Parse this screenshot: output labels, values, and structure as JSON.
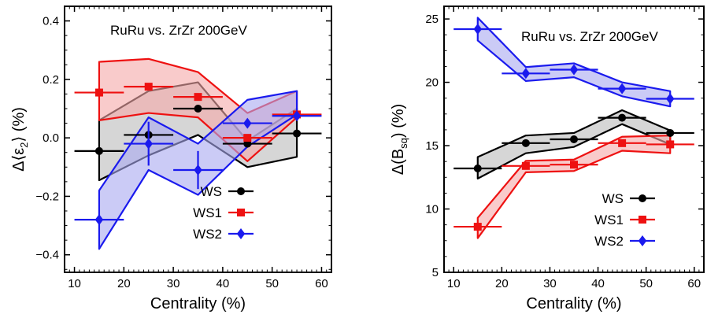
{
  "chart_data": [
    {
      "type": "line",
      "title": "RuRu vs. ZrZr 200GeV",
      "xlabel": "Centrality (%)",
      "ylabel_prefix": "Δ⟨ε",
      "ylabel_sub": "2",
      "ylabel_suffix": "⟩ (%)",
      "xlim": [
        8,
        62
      ],
      "ylim": [
        -0.46,
        0.45
      ],
      "xticks": [
        10,
        20,
        30,
        40,
        50,
        60
      ],
      "yticks": [
        -0.4,
        -0.2,
        0.0,
        0.2,
        0.4
      ],
      "ytick_labels": [
        "−0.4",
        "−0.2",
        "0.0",
        "0.2",
        "0.4"
      ],
      "legend_position": "lower-right",
      "series": [
        {
          "name": "WS",
          "color": "#000000",
          "fill": "#bbbbbb",
          "marker": "circle",
          "x": [
            15,
            25,
            35,
            45,
            55
          ],
          "y": [
            -0.045,
            0.01,
            0.1,
            -0.02,
            0.015
          ],
          "xerr": 5,
          "band_upper": [
            0.06,
            0.16,
            0.19,
            -0.01,
            0.1
          ],
          "band_lower": [
            -0.145,
            -0.06,
            0.01,
            -0.1,
            -0.065
          ]
        },
        {
          "name": "WS1",
          "color": "#ee1111",
          "fill": "#f5a8a8",
          "marker": "square",
          "x": [
            15,
            25,
            35,
            45,
            55
          ],
          "y": [
            0.155,
            0.175,
            0.14,
            0.0,
            0.08
          ],
          "xerr": 5,
          "band_upper": [
            0.26,
            0.27,
            0.225,
            0.085,
            0.16
          ],
          "band_lower": [
            0.06,
            0.085,
            0.07,
            -0.08,
            0.07
          ]
        },
        {
          "name": "WS2",
          "color": "#1a1aee",
          "fill": "#a8a8f0",
          "marker": "diamond",
          "x": [
            15,
            25,
            35,
            45,
            55
          ],
          "y": [
            -0.28,
            -0.02,
            -0.11,
            0.05,
            0.075
          ],
          "xerr": 5,
          "yerr": [
            0,
            0.075,
            0.065,
            0,
            0
          ],
          "band_upper": [
            -0.18,
            0.07,
            -0.02,
            0.13,
            0.16
          ],
          "band_lower": [
            -0.38,
            -0.11,
            -0.195,
            -0.03,
            0.08
          ]
        }
      ]
    },
    {
      "type": "line",
      "title": "RuRu vs. ZrZr 200GeV",
      "xlabel": "Centrality (%)",
      "ylabel_prefix": "Δ(B",
      "ylabel_sub": "sq",
      "ylabel_suffix": ") (%)",
      "xlim": [
        8,
        62
      ],
      "ylim": [
        5,
        26
      ],
      "xticks": [
        10,
        20,
        30,
        40,
        50,
        60
      ],
      "yticks": [
        5,
        10,
        15,
        20,
        25
      ],
      "ytick_labels": [
        "5",
        "10",
        "15",
        "20",
        "25"
      ],
      "legend_position": "lower-right",
      "series": [
        {
          "name": "WS",
          "color": "#000000",
          "fill": "#bbbbbb",
          "marker": "circle",
          "x": [
            15,
            25,
            35,
            45,
            55
          ],
          "y": [
            13.2,
            15.2,
            15.5,
            17.2,
            16.0
          ],
          "xerr": 5,
          "band_upper": [
            14.1,
            15.8,
            16.0,
            17.8,
            16.2
          ],
          "band_lower": [
            12.4,
            14.4,
            14.9,
            16.7,
            15.1
          ]
        },
        {
          "name": "WS1",
          "color": "#ee1111",
          "fill": "#f5a8a8",
          "marker": "square",
          "x": [
            15,
            25,
            35,
            45,
            55
          ],
          "y": [
            8.6,
            13.4,
            13.5,
            15.2,
            15.1
          ],
          "xerr": 5,
          "band_upper": [
            9.3,
            13.8,
            13.9,
            15.7,
            15.8
          ],
          "band_lower": [
            7.7,
            12.9,
            13.0,
            14.6,
            14.4
          ]
        },
        {
          "name": "WS2",
          "color": "#1a1aee",
          "fill": "#a8a8f0",
          "marker": "diamond",
          "x": [
            15,
            25,
            35,
            45,
            55
          ],
          "y": [
            24.2,
            20.7,
            21.0,
            19.5,
            18.7
          ],
          "xerr": 5,
          "band_upper": [
            25.1,
            21.2,
            21.5,
            20.0,
            19.3
          ],
          "band_lower": [
            23.3,
            20.1,
            20.4,
            18.9,
            18.1
          ]
        }
      ]
    }
  ]
}
